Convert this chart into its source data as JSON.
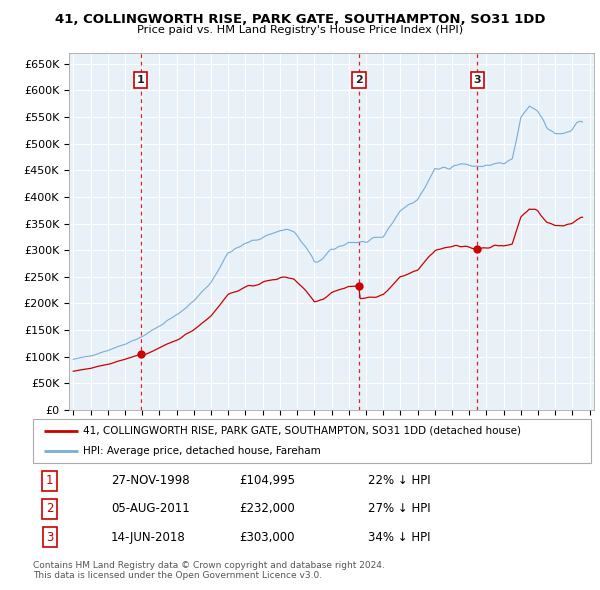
{
  "title": "41, COLLINGWORTH RISE, PARK GATE, SOUTHAMPTON, SO31 1DD",
  "subtitle": "Price paid vs. HM Land Registry's House Price Index (HPI)",
  "legend_property": "41, COLLINGWORTH RISE, PARK GATE, SOUTHAMPTON, SO31 1DD (detached house)",
  "legend_hpi": "HPI: Average price, detached house, Fareham",
  "sales": [
    {
      "label": "1",
      "date_num": 1998.92,
      "price": 104995
    },
    {
      "label": "2",
      "date_num": 2011.59,
      "price": 232000
    },
    {
      "label": "3",
      "date_num": 2018.46,
      "price": 303000
    }
  ],
  "sale_annotations": [
    {
      "label": "1",
      "date": "27-NOV-1998",
      "price": "£104,995",
      "pct": "22% ↓ HPI"
    },
    {
      "label": "2",
      "date": "05-AUG-2011",
      "price": "£232,000",
      "pct": "27% ↓ HPI"
    },
    {
      "label": "3",
      "date": "14-JUN-2018",
      "price": "£303,000",
      "pct": "34% ↓ HPI"
    }
  ],
  "hpi_color": "#7aadd4",
  "property_color": "#cc0000",
  "ylim": [
    0,
    670000
  ],
  "xlim": [
    1994.75,
    2025.25
  ],
  "yticks": [
    0,
    50000,
    100000,
    150000,
    200000,
    250000,
    300000,
    350000,
    400000,
    450000,
    500000,
    550000,
    600000,
    650000
  ],
  "ytick_labels": [
    "£0",
    "£50K",
    "£100K",
    "£150K",
    "£200K",
    "£250K",
    "£300K",
    "£350K",
    "£400K",
    "£450K",
    "£500K",
    "£550K",
    "£600K",
    "£650K"
  ],
  "xticks": [
    1995,
    1996,
    1997,
    1998,
    1999,
    2000,
    2001,
    2002,
    2003,
    2004,
    2005,
    2006,
    2007,
    2008,
    2009,
    2010,
    2011,
    2012,
    2013,
    2014,
    2015,
    2016,
    2017,
    2018,
    2019,
    2020,
    2021,
    2022,
    2023,
    2024,
    2025
  ],
  "footnote1": "Contains HM Land Registry data © Crown copyright and database right 2024.",
  "footnote2": "This data is licensed under the Open Government Licence v3.0.",
  "bg_color": "#e8f0f8"
}
